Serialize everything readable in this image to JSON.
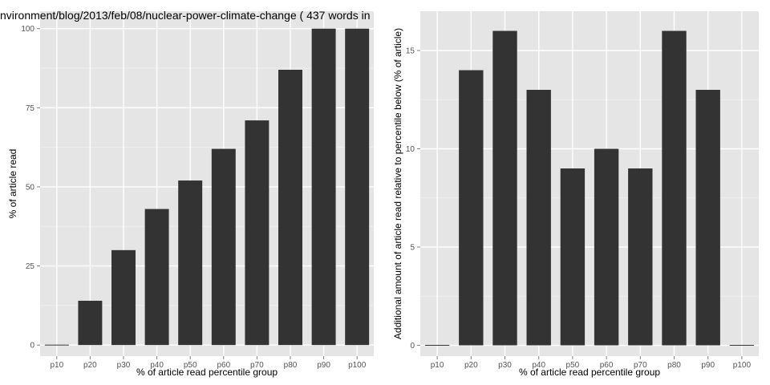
{
  "chart_data": [
    {
      "type": "bar",
      "title": "nvironment/blog/2013/feb/08/nuclear-power-climate-change ( 437 words in",
      "xlabel": "% of article read percentile group",
      "ylabel": "% of article read",
      "categories": [
        "p10",
        "p20",
        "p30",
        "p40",
        "p50",
        "p60",
        "p70",
        "p80",
        "p90",
        "p100"
      ],
      "values": [
        0,
        14,
        30,
        43,
        52,
        62,
        71,
        87,
        100,
        100
      ],
      "ylim": [
        -3.5,
        105.5
      ],
      "yticks": [
        0,
        25,
        50,
        75,
        100
      ],
      "grid": true,
      "bar_color": "#333333",
      "panel_color": "#e5e5e5",
      "grid_color": "#ffffff"
    },
    {
      "type": "bar",
      "title": "",
      "xlabel": "% of article read percentile group",
      "ylabel": "Additional amount of article read relative to percentile below (% of article)",
      "categories": [
        "p10",
        "p20",
        "p30",
        "p40",
        "p50",
        "p60",
        "p70",
        "p80",
        "p90",
        "p100"
      ],
      "values": [
        0,
        14,
        16,
        13,
        9,
        10,
        9,
        16,
        13,
        0
      ],
      "ylim": [
        -0.55,
        17
      ],
      "yticks": [
        0,
        5,
        10,
        15
      ],
      "grid": true,
      "bar_color": "#333333",
      "panel_color": "#e5e5e5",
      "grid_color": "#ffffff"
    }
  ]
}
